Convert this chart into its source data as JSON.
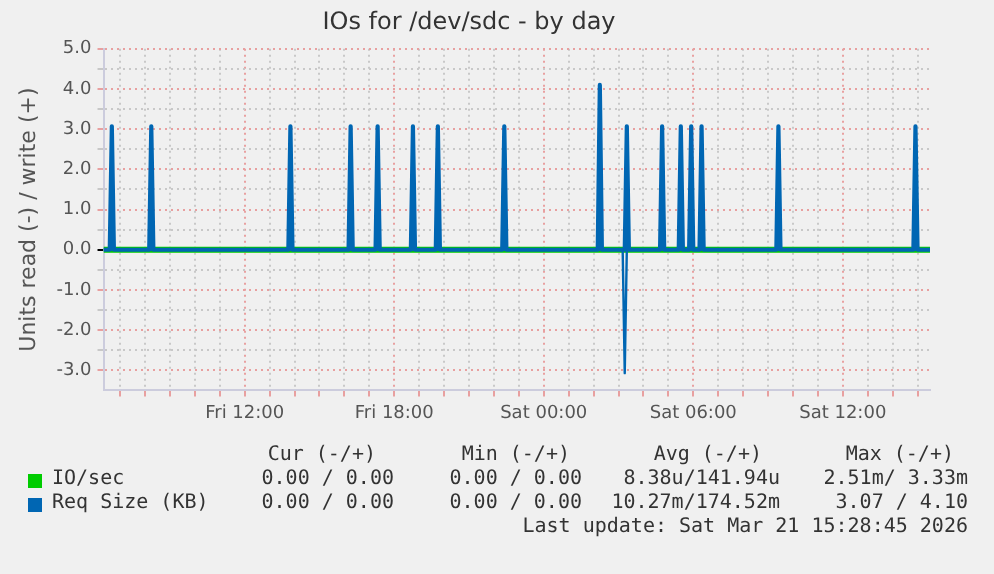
{
  "chart_data": {
    "type": "line",
    "title": "IOs for /dev/sdc - by day",
    "ylabel": "Units read (-) / write (+)",
    "legend": "bottom",
    "grid": true,
    "marker": "none",
    "line_style": "solid",
    "xlim": [
      "2026-03-20T06:20",
      "2026-03-21T15:30"
    ],
    "xticks": [
      {
        "value": "2026-03-20T07:00",
        "label": null
      },
      {
        "value": "2026-03-20T08:00",
        "label": null
      },
      {
        "value": "2026-03-20T09:00",
        "label": null
      },
      {
        "value": "2026-03-20T10:00",
        "label": null
      },
      {
        "value": "2026-03-20T11:00",
        "label": null
      },
      {
        "value": "2026-03-20T12:00",
        "label": "Fri 12:00"
      },
      {
        "value": "2026-03-20T13:00",
        "label": null
      },
      {
        "value": "2026-03-20T14:00",
        "label": null
      },
      {
        "value": "2026-03-20T15:00",
        "label": null
      },
      {
        "value": "2026-03-20T16:00",
        "label": null
      },
      {
        "value": "2026-03-20T17:00",
        "label": null
      },
      {
        "value": "2026-03-20T18:00",
        "label": "Fri 18:00"
      },
      {
        "value": "2026-03-20T19:00",
        "label": null
      },
      {
        "value": "2026-03-20T20:00",
        "label": null
      },
      {
        "value": "2026-03-20T21:00",
        "label": null
      },
      {
        "value": "2026-03-20T22:00",
        "label": null
      },
      {
        "value": "2026-03-20T23:00",
        "label": null
      },
      {
        "value": "2026-03-21T00:00",
        "label": "Sat 00:00"
      },
      {
        "value": "2026-03-21T01:00",
        "label": null
      },
      {
        "value": "2026-03-21T02:00",
        "label": null
      },
      {
        "value": "2026-03-21T03:00",
        "label": null
      },
      {
        "value": "2026-03-21T04:00",
        "label": null
      },
      {
        "value": "2026-03-21T05:00",
        "label": null
      },
      {
        "value": "2026-03-21T06:00",
        "label": "Sat 06:00"
      },
      {
        "value": "2026-03-21T07:00",
        "label": null
      },
      {
        "value": "2026-03-21T08:00",
        "label": null
      },
      {
        "value": "2026-03-21T09:00",
        "label": null
      },
      {
        "value": "2026-03-21T10:00",
        "label": null
      },
      {
        "value": "2026-03-21T11:00",
        "label": null
      },
      {
        "value": "2026-03-21T12:00",
        "label": "Sat 12:00"
      },
      {
        "value": "2026-03-21T13:00",
        "label": null
      },
      {
        "value": "2026-03-21T14:00",
        "label": null
      },
      {
        "value": "2026-03-21T15:00",
        "label": null
      }
    ],
    "ylim": [
      -3.5,
      5.0
    ],
    "yticks": [
      {
        "value": -3,
        "label": "-3.0"
      },
      {
        "value": -2.5,
        "label": null
      },
      {
        "value": -2,
        "label": "-2.0"
      },
      {
        "value": -1.5,
        "label": null
      },
      {
        "value": -1,
        "label": "-1.0"
      },
      {
        "value": -0.5,
        "label": null
      },
      {
        "value": 0,
        "label": "0.0"
      },
      {
        "value": 0.5,
        "label": null
      },
      {
        "value": 1,
        "label": "1.0"
      },
      {
        "value": 1.5,
        "label": null
      },
      {
        "value": 2,
        "label": "2.0"
      },
      {
        "value": 2.5,
        "label": null
      },
      {
        "value": 3,
        "label": "3.0"
      },
      {
        "value": 3.5,
        "label": null
      },
      {
        "value": 4,
        "label": "4.0"
      },
      {
        "value": 4.5,
        "label": null
      },
      {
        "value": 5,
        "label": "5.0"
      }
    ],
    "series": [
      {
        "name": "IO/sec",
        "color": "#00cc00",
        "x": [
          "2026-03-20T06:20",
          "2026-03-21T15:30"
        ],
        "values": [
          0,
          0
        ]
      },
      {
        "name": "Req Size (KB)",
        "color": "#0066b3",
        "x": [
          "2026-03-20T06:20",
          "2026-03-20T06:35",
          "2026-03-20T06:40",
          "2026-03-20T06:45",
          "2026-03-20T08:10",
          "2026-03-20T08:15",
          "2026-03-20T08:20",
          "2026-03-20T13:45",
          "2026-03-20T13:50",
          "2026-03-20T13:55",
          "2026-03-20T16:10",
          "2026-03-20T16:15",
          "2026-03-20T16:20",
          "2026-03-20T17:15",
          "2026-03-20T17:20",
          "2026-03-20T17:25",
          "2026-03-20T18:40",
          "2026-03-20T18:45",
          "2026-03-20T18:50",
          "2026-03-20T19:40",
          "2026-03-20T19:45",
          "2026-03-20T19:50",
          "2026-03-20T22:20",
          "2026-03-20T22:25",
          "2026-03-20T22:30",
          "2026-03-21T02:10",
          "2026-03-21T02:15",
          "2026-03-21T02:20",
          "2026-03-21T03:15",
          "2026-03-21T03:20",
          "2026-03-21T03:25",
          "2026-03-21T04:40",
          "2026-03-21T04:45",
          "2026-03-21T04:50",
          "2026-03-21T05:25",
          "2026-03-21T05:30",
          "2026-03-21T05:35",
          "2026-03-21T05:50",
          "2026-03-21T05:55",
          "2026-03-21T06:00",
          "2026-03-21T06:15",
          "2026-03-21T06:20",
          "2026-03-21T06:25",
          "2026-03-21T09:20",
          "2026-03-21T09:25",
          "2026-03-21T09:30",
          "2026-03-21T14:50",
          "2026-03-21T14:55",
          "2026-03-21T15:00",
          "2026-03-21T15:30"
        ],
        "values": [
          0,
          0,
          3.07,
          0,
          0,
          3.07,
          0,
          0,
          3.07,
          0,
          0,
          3.07,
          0,
          0,
          3.07,
          0,
          0,
          3.07,
          0,
          0,
          3.07,
          0,
          0,
          3.07,
          0,
          0,
          4.1,
          0,
          0,
          3.07,
          0,
          0,
          3.07,
          0,
          0,
          3.07,
          0,
          0,
          3.07,
          0,
          0,
          3.07,
          0,
          0,
          3.07,
          0,
          0,
          3.07,
          0,
          0
        ]
      },
      {
        "color": "#0066b3",
        "x": [
          "2026-03-20T06:20",
          "2026-03-21T03:10",
          "2026-03-21T03:15",
          "2026-03-21T03:20",
          "2026-03-21T15:30"
        ],
        "values": [
          0,
          0,
          -3.07,
          0,
          0
        ]
      }
    ],
    "annotations": [
      "Cur (-/+)",
      "Min (-/+)",
      "Avg (-/+)",
      "Max (-/+)",
      "0.00 / 0.00",
      "0.00 / 0.00",
      "8.38u/141.94u",
      "2.51m/ 3.33m",
      "0.00 / 0.00",
      "0.00 / 0.00",
      "10.27m/174.52m",
      "3.07 / 4.10",
      "Last update: Sat Mar 21 15:28:45 2026"
    ]
  }
}
